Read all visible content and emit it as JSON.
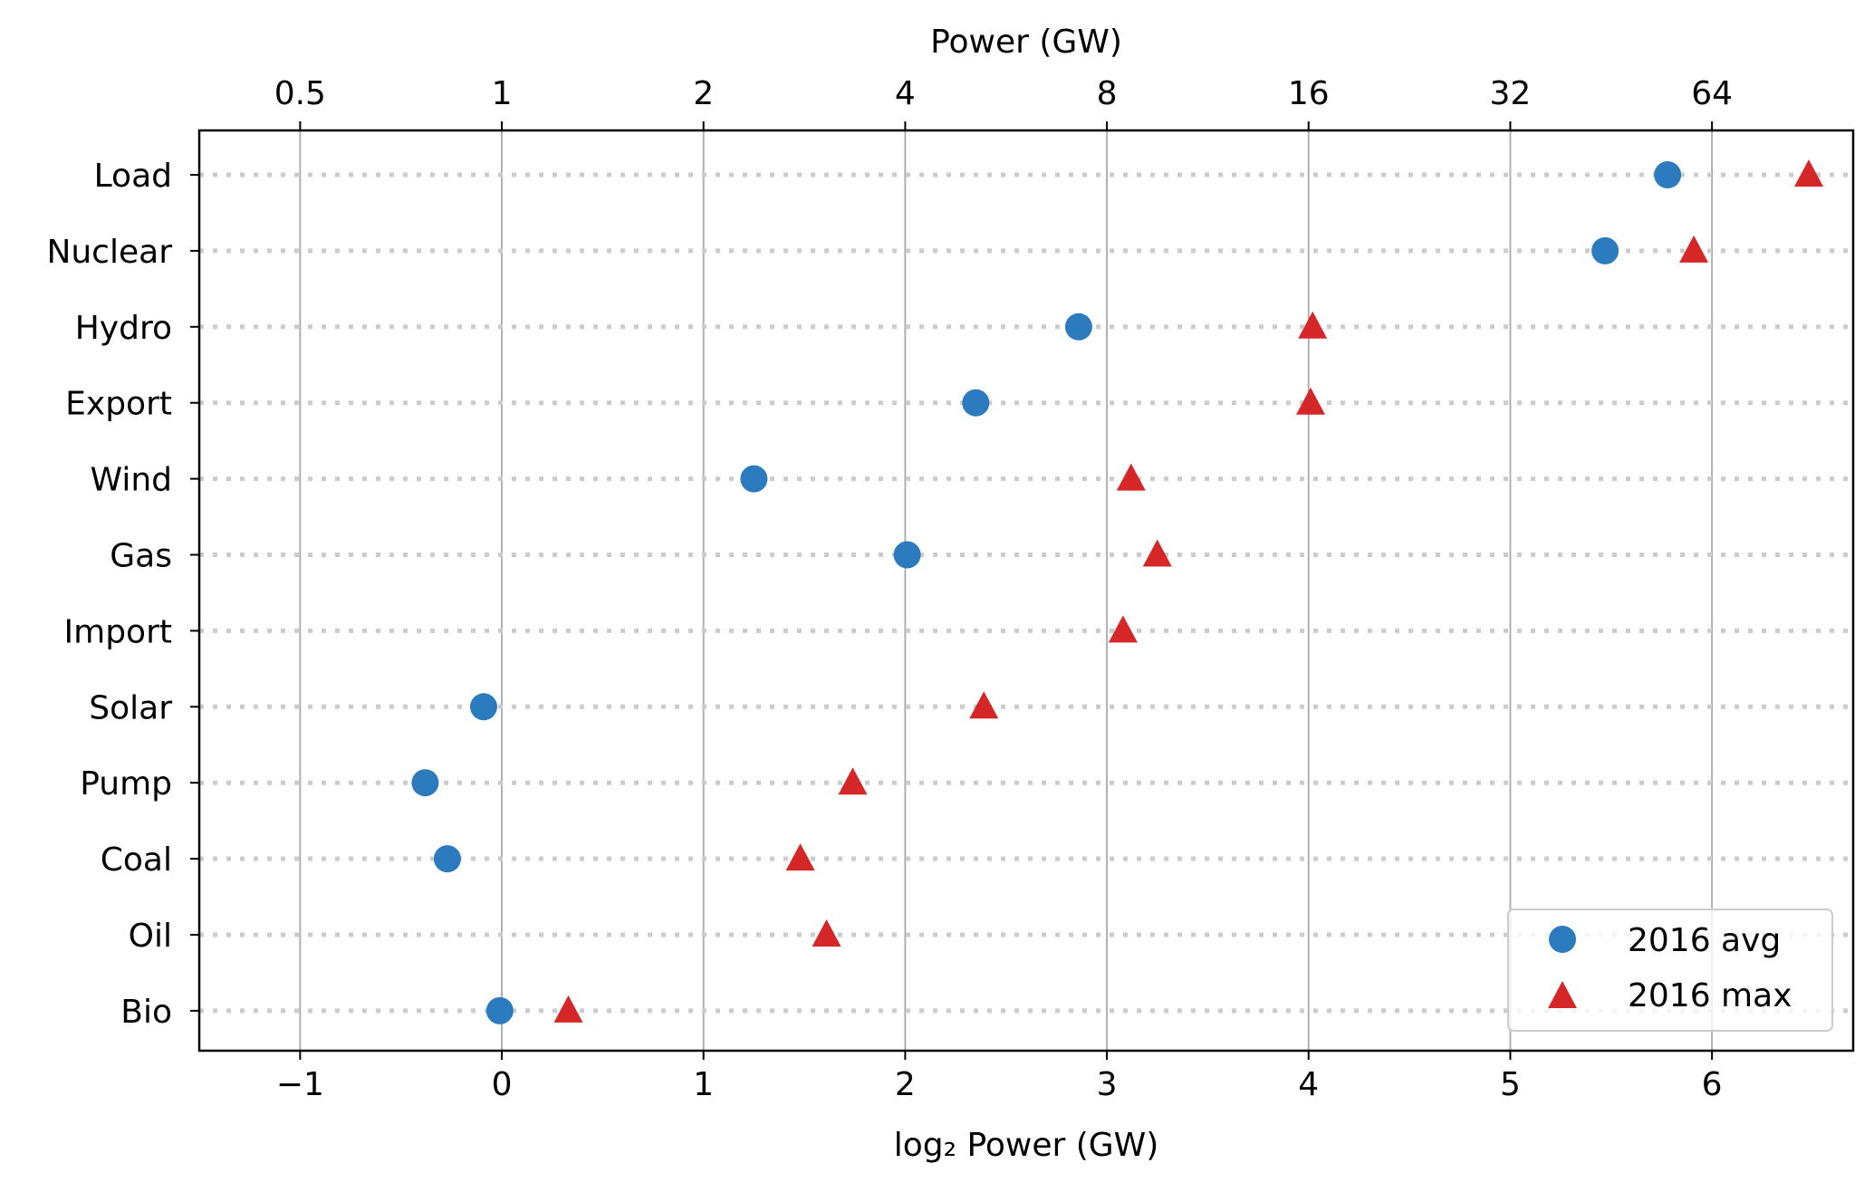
{
  "chart_data": {
    "type": "scatter",
    "title": "",
    "xlabel": "log₂ Power (GW)",
    "top_xlabel": "Power (GW)",
    "xlim": [
      -1.5,
      6.7
    ],
    "x_ticks": [
      -1,
      0,
      1,
      2,
      3,
      4,
      5,
      6
    ],
    "x_tick_labels": [
      "−1",
      "0",
      "1",
      "2",
      "3",
      "4",
      "5",
      "6"
    ],
    "top_x_ticks": [
      -1,
      0,
      1,
      2,
      3,
      4,
      5,
      6
    ],
    "top_x_tick_labels": [
      "0.5",
      "1",
      "2",
      "4",
      "8",
      "16",
      "32",
      "64"
    ],
    "x_grid": true,
    "row_guides": "dotted",
    "categories": [
      "Load",
      "Nuclear",
      "Hydro",
      "Export",
      "Wind",
      "Gas",
      "Import",
      "Solar",
      "Pump",
      "Coal",
      "Oil",
      "Bio"
    ],
    "series": [
      {
        "name": "2016 avg",
        "marker": "circle",
        "color": "#2c7bbf",
        "values": [
          5.78,
          5.47,
          2.86,
          2.35,
          1.25,
          2.01,
          null,
          -0.09,
          -0.38,
          -0.27,
          null,
          -0.01
        ]
      },
      {
        "name": "2016 max",
        "marker": "triangle",
        "color": "#d62728",
        "values": [
          6.48,
          5.91,
          4.02,
          4.01,
          3.12,
          3.25,
          3.08,
          2.39,
          1.74,
          1.48,
          1.61,
          0.33
        ]
      }
    ],
    "legend_position": "lower-right"
  }
}
